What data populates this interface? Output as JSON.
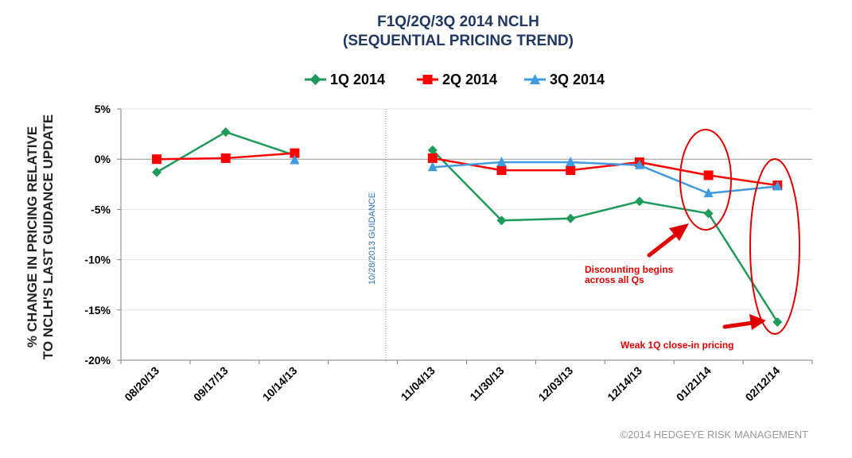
{
  "chart_data": {
    "type": "line",
    "title_line1": "F1Q/2Q/3Q 2014 NCLH",
    "title_line2": "(SEQUENTIAL PRICING TREND)",
    "ylabel_line1": "% CHANGE IN PRICING RELATIVE",
    "ylabel_line2": "TO NCLH'S LAST GUIDANCE UPDATE",
    "categories": [
      "08/20/13",
      "09/17/13",
      "10/14/13",
      "",
      "11/04/13",
      "11/30/13",
      "12/03/13",
      "12/14/13",
      "01/21/14",
      "02/12/14"
    ],
    "ylim": [
      -20,
      5
    ],
    "yticks": [
      5,
      0,
      -5,
      -10,
      -15,
      -20
    ],
    "ytick_labels": [
      "5%",
      "0%",
      "-5%",
      "-10%",
      "-15%",
      "-20%"
    ],
    "series": [
      {
        "name": "1Q 2014",
        "color": "#1e9a5a",
        "marker": "diamond",
        "values": [
          -1.3,
          2.7,
          0.4,
          null,
          0.9,
          -6.1,
          -5.9,
          -4.2,
          -5.4,
          -16.2
        ]
      },
      {
        "name": "2Q 2014",
        "color": "#ff0000",
        "marker": "square",
        "values": [
          0.0,
          0.1,
          0.6,
          null,
          0.1,
          -1.1,
          -1.1,
          -0.3,
          -1.6,
          -2.6
        ]
      },
      {
        "name": "3Q 2014",
        "color": "#3f9ae0",
        "marker": "triangle",
        "values": [
          null,
          null,
          -0.1,
          null,
          -0.8,
          -0.3,
          -0.3,
          -0.6,
          -3.4,
          -2.7
        ]
      }
    ],
    "vertical_marker": {
      "label": "10/28/2013 GUIDANCE",
      "category_index": 3
    },
    "annotations": {
      "discounting_line1": "Discounting begins",
      "discounting_line2": "across all Qs",
      "weak": "Weak 1Q close-in pricing"
    },
    "highlight_colors": {
      "circles": "#e00000",
      "arrows": "#e00000"
    },
    "copyright": "©2014 HEDGEYE RISK MANAGEMENT"
  }
}
